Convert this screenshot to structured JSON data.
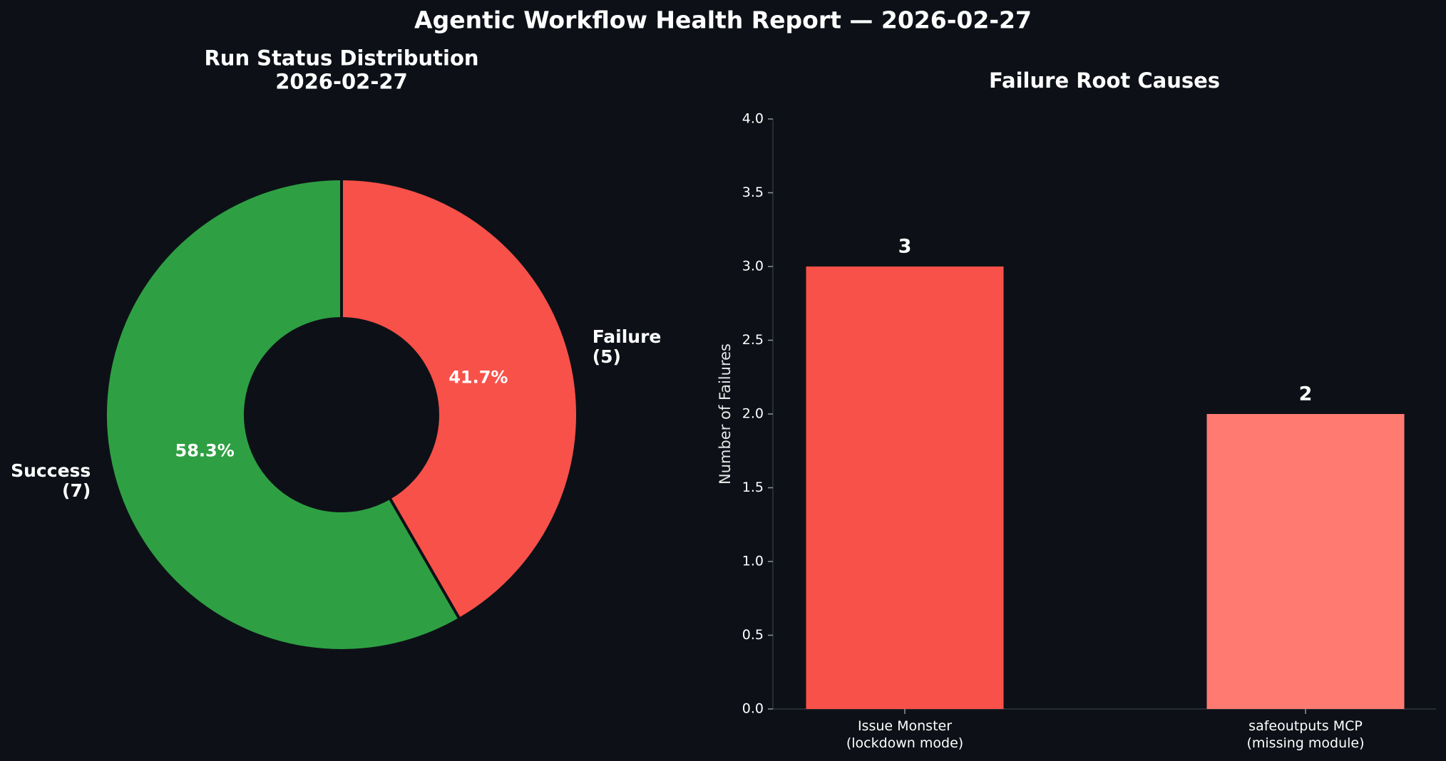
{
  "title": "Agentic Workflow Health Report — 2026-02-27",
  "chart_data": [
    {
      "type": "pie",
      "title": "Run Status Distribution\n2026-02-27",
      "donut": true,
      "start_angle_deg": 90,
      "direction": "clockwise",
      "slices": [
        {
          "label": "Failure\n(5)",
          "value": 5,
          "percent_label": "41.7%",
          "color": "#f85149"
        },
        {
          "label": "Success\n(7)",
          "value": 7,
          "percent_label": "58.3%",
          "color": "#2ea043"
        }
      ]
    },
    {
      "type": "bar",
      "title": "Failure Root Causes",
      "xlabel": "",
      "ylabel": "Number of Failures",
      "ylim": [
        0,
        4.0
      ],
      "yticks": [
        0.0,
        0.5,
        1.0,
        1.5,
        2.0,
        2.5,
        3.0,
        3.5,
        4.0
      ],
      "ytick_labels": [
        "0.0",
        "0.5",
        "1.0",
        "1.5",
        "2.0",
        "2.5",
        "3.0",
        "3.5",
        "4.0"
      ],
      "categories": [
        "Issue Monster\n(lockdown mode)",
        "safeoutputs MCP\n(missing module)"
      ],
      "values": [
        3,
        2
      ],
      "value_labels": [
        "3",
        "2"
      ],
      "colors": [
        "#f85149",
        "#ff7b72"
      ],
      "grid": false
    }
  ],
  "colors": {
    "background": "#0d1117",
    "text": "#ffffff",
    "axis": "#30363d",
    "failure": "#f85149",
    "success": "#2ea043",
    "failure_secondary": "#ff7b72"
  }
}
